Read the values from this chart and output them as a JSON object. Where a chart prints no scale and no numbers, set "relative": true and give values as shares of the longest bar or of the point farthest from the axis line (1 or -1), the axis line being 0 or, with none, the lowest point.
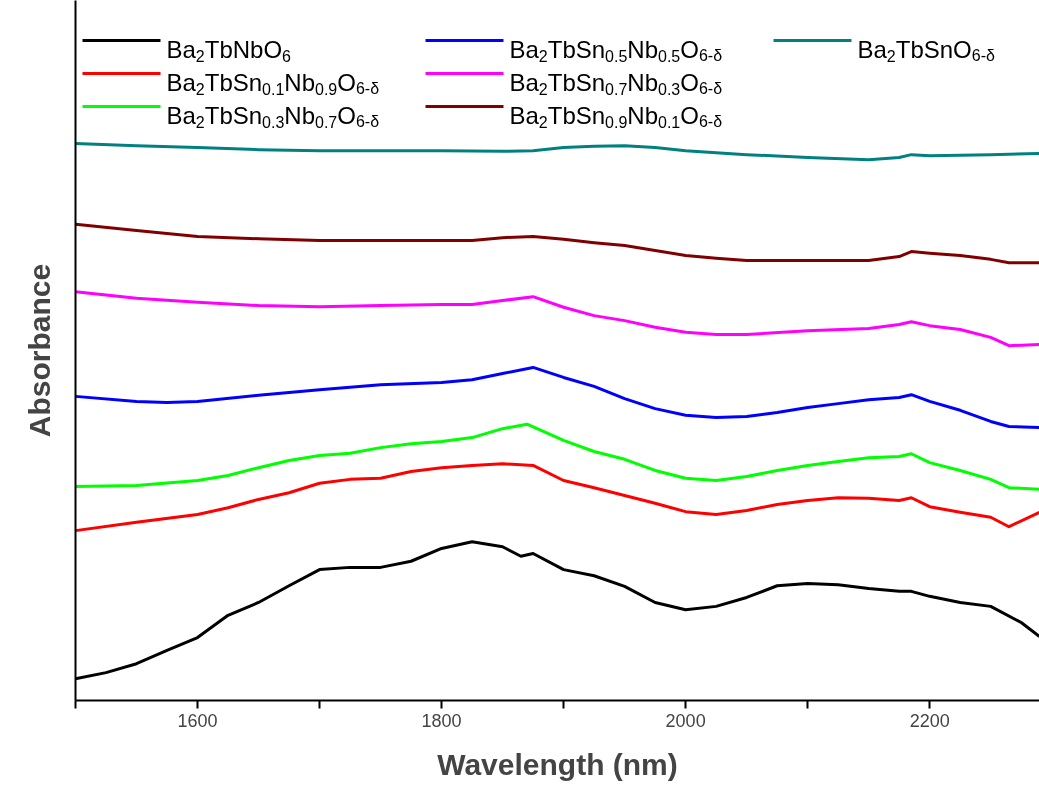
{
  "chart_data": {
    "type": "line",
    "relative": true,
    "xlabel": "Wavelength (nm)",
    "ylabel": "Absorbance",
    "xlim": [
      1500,
      2290
    ],
    "xticks": [
      {
        "value": 1500,
        "label": null
      },
      1600,
      {
        "value": 1700,
        "label": null
      },
      1800,
      {
        "value": 1900,
        "label": null
      },
      2000,
      {
        "value": 2100,
        "label": null
      },
      2200
    ],
    "grid": false,
    "legend": "top",
    "marker": "none",
    "line_style": "solid",
    "series": [
      {
        "name": "Ba$_{2}$TbNbO$_{6}$",
        "color": "#000000",
        "x": [
          1500,
          1525,
          1550,
          1575,
          1600,
          1625,
          1650,
          1675,
          1700,
          1725,
          1750,
          1775,
          1800,
          1825,
          1850,
          1865,
          1875,
          1900,
          1925,
          1950,
          1975,
          2000,
          2025,
          2050,
          2075,
          2100,
          2125,
          2150,
          2175,
          2185,
          2200,
          2225,
          2250,
          2275,
          2290
        ],
        "values": [
          0.039,
          0.05,
          0.066,
          0.09,
          0.113,
          0.153,
          0.176,
          0.206,
          0.235,
          0.239,
          0.239,
          0.25,
          0.273,
          0.285,
          0.276,
          0.259,
          0.264,
          0.235,
          0.224,
          0.205,
          0.176,
          0.163,
          0.169,
          0.185,
          0.206,
          0.21,
          0.208,
          0.201,
          0.196,
          0.196,
          0.187,
          0.176,
          0.169,
          0.14,
          0.115
        ]
      },
      {
        "name": "Ba$_{2}$TbSn$_{0.1}$Nb$_{0.9}$O$_{6-δ}$",
        "color": "#ff0000",
        "x": [
          1500,
          1550,
          1600,
          1625,
          1650,
          1675,
          1700,
          1725,
          1750,
          1775,
          1800,
          1825,
          1850,
          1875,
          1900,
          1925,
          1950,
          1975,
          2000,
          2025,
          2050,
          2075,
          2100,
          2125,
          2150,
          2175,
          2185,
          2200,
          2225,
          2250,
          2265,
          2290
        ],
        "values": [
          0.305,
          0.32,
          0.334,
          0.346,
          0.361,
          0.373,
          0.39,
          0.397,
          0.399,
          0.411,
          0.418,
          0.422,
          0.425,
          0.422,
          0.395,
          0.382,
          0.368,
          0.354,
          0.339,
          0.334,
          0.341,
          0.352,
          0.359,
          0.364,
          0.363,
          0.359,
          0.364,
          0.348,
          0.338,
          0.329,
          0.312,
          0.338
        ]
      },
      {
        "name": "Ba$_{2}$TbSn$_{0.3}$Nb$_{0.7}$O$_{6-δ}$",
        "color": "#00ff00",
        "x": [
          1500,
          1550,
          1600,
          1625,
          1650,
          1675,
          1700,
          1725,
          1750,
          1775,
          1800,
          1825,
          1850,
          1870,
          1900,
          1925,
          1950,
          1975,
          2000,
          2025,
          2050,
          2075,
          2100,
          2125,
          2150,
          2175,
          2185,
          2200,
          2225,
          2250,
          2265,
          2290
        ],
        "values": [
          0.384,
          0.386,
          0.395,
          0.404,
          0.418,
          0.431,
          0.44,
          0.444,
          0.454,
          0.461,
          0.465,
          0.472,
          0.488,
          0.496,
          0.467,
          0.447,
          0.433,
          0.413,
          0.399,
          0.395,
          0.402,
          0.413,
          0.422,
          0.429,
          0.436,
          0.438,
          0.443,
          0.427,
          0.413,
          0.397,
          0.382,
          0.379
        ]
      },
      {
        "name": "Ba$_{2}$TbSn$_{0.5}$Nb$_{0.5}$O$_{6-δ}$",
        "color": "#0000ff",
        "x": [
          1500,
          1550,
          1575,
          1600,
          1650,
          1700,
          1750,
          1800,
          1825,
          1850,
          1875,
          1900,
          1925,
          1950,
          1975,
          2000,
          2025,
          2050,
          2075,
          2100,
          2125,
          2150,
          2175,
          2185,
          2200,
          2225,
          2250,
          2265,
          2290
        ],
        "values": [
          0.546,
          0.537,
          0.535,
          0.537,
          0.548,
          0.558,
          0.567,
          0.571,
          0.576,
          0.587,
          0.598,
          0.58,
          0.564,
          0.542,
          0.524,
          0.512,
          0.508,
          0.51,
          0.517,
          0.526,
          0.533,
          0.54,
          0.544,
          0.549,
          0.537,
          0.521,
          0.501,
          0.492,
          0.49
        ]
      },
      {
        "name": "Ba$_{2}$TbSn$_{0.7}$Nb$_{0.3}$O$_{6-δ}$",
        "color": "#ff00ff",
        "x": [
          1500,
          1550,
          1600,
          1650,
          1700,
          1750,
          1800,
          1825,
          1850,
          1875,
          1900,
          1925,
          1950,
          1975,
          2000,
          2025,
          2050,
          2100,
          2150,
          2175,
          2185,
          2200,
          2225,
          2250,
          2265,
          2290
        ],
        "values": [
          0.734,
          0.722,
          0.715,
          0.709,
          0.707,
          0.709,
          0.711,
          0.711,
          0.718,
          0.725,
          0.706,
          0.691,
          0.682,
          0.67,
          0.661,
          0.657,
          0.657,
          0.664,
          0.668,
          0.675,
          0.68,
          0.673,
          0.666,
          0.652,
          0.637,
          0.639
        ]
      },
      {
        "name": "Ba$_{2}$TbSn$_{0.9}$Nb$_{0.1}$O$_{6-δ}$",
        "color": "#800000",
        "x": [
          1500,
          1550,
          1600,
          1650,
          1700,
          1750,
          1800,
          1825,
          1850,
          1875,
          1900,
          1925,
          1950,
          1975,
          2000,
          2025,
          2050,
          2100,
          2150,
          2175,
          2185,
          2200,
          2225,
          2250,
          2265,
          2290
        ],
        "values": [
          0.855,
          0.844,
          0.833,
          0.829,
          0.826,
          0.826,
          0.826,
          0.826,
          0.831,
          0.833,
          0.828,
          0.822,
          0.817,
          0.808,
          0.799,
          0.794,
          0.79,
          0.79,
          0.79,
          0.797,
          0.806,
          0.803,
          0.799,
          0.792,
          0.786,
          0.786
        ]
      },
      {
        "name": "Ba$_{2}$TbSnO$_{6-δ}$",
        "color": "#008080",
        "x": [
          1500,
          1550,
          1600,
          1650,
          1700,
          1750,
          1800,
          1850,
          1875,
          1900,
          1925,
          1950,
          1975,
          2000,
          2050,
          2100,
          2150,
          2175,
          2185,
          2200,
          2250,
          2290
        ],
        "values": [
          1.0,
          0.996,
          0.993,
          0.989,
          0.987,
          0.987,
          0.987,
          0.986,
          0.987,
          0.993,
          0.995,
          0.996,
          0.993,
          0.987,
          0.98,
          0.975,
          0.971,
          0.975,
          0.98,
          0.978,
          0.98,
          0.982
        ]
      }
    ]
  }
}
